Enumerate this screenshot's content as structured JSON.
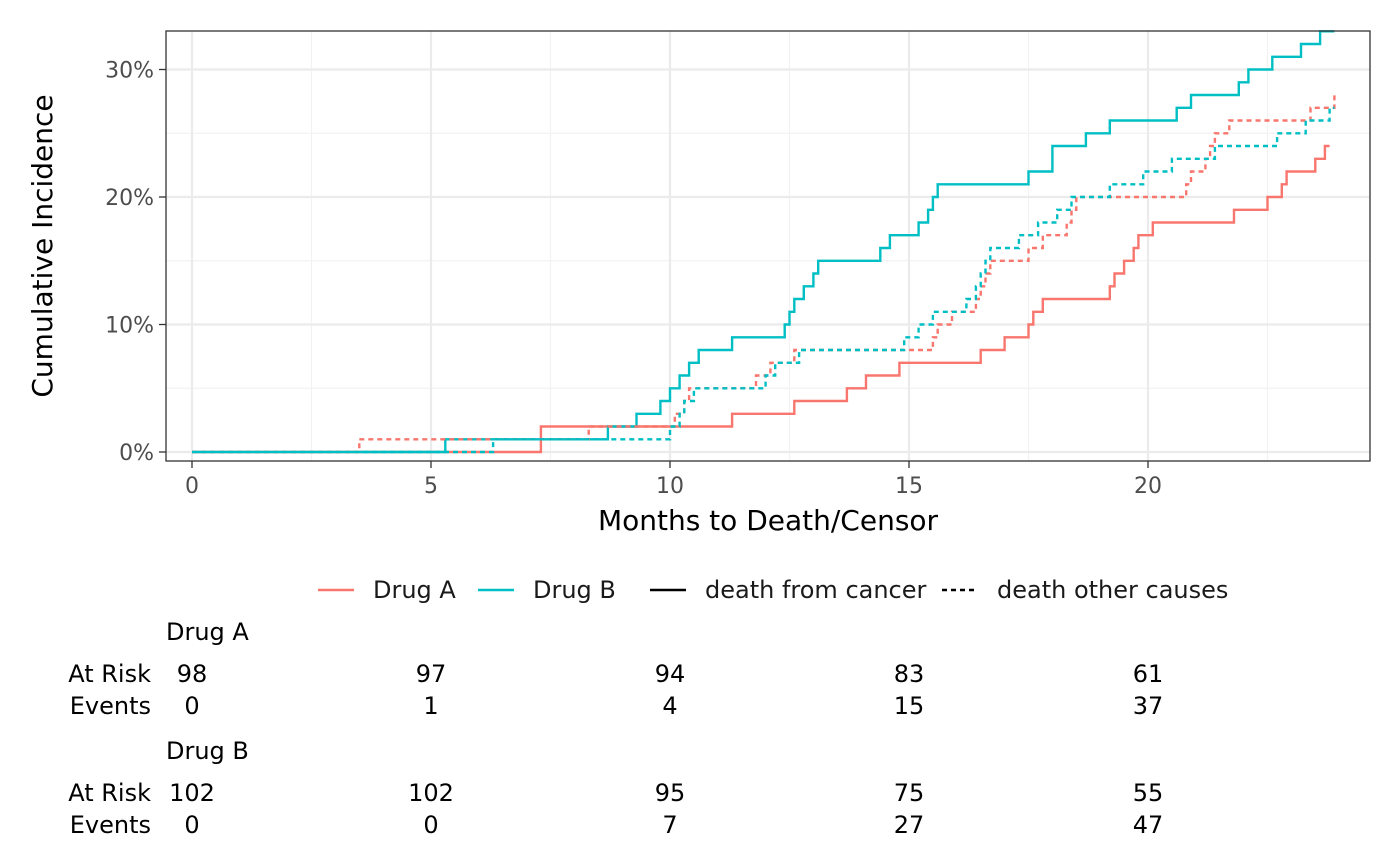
{
  "chart_data": {
    "type": "line",
    "xlabel": "Months to Death/Censor",
    "ylabel": "Cumulative Incidence",
    "xlim": [
      0,
      24
    ],
    "ylim": [
      0,
      0.32
    ],
    "x_ticks": [
      0,
      5,
      10,
      15,
      20
    ],
    "x_tick_labels": [
      "0",
      "5",
      "10",
      "15",
      "20"
    ],
    "y_ticks": [
      0,
      0.1,
      0.2,
      0.3
    ],
    "y_tick_labels": [
      "0%",
      "10%",
      "20%",
      "30%"
    ],
    "grid": true,
    "legend_position": "bottom",
    "legend_items": [
      {
        "label": "Drug A",
        "type": "color",
        "color": "#F8766D"
      },
      {
        "label": "Drug B",
        "type": "color",
        "color": "#00BFC4"
      },
      {
        "label": "death from cancer",
        "type": "linetype",
        "dash": "solid"
      },
      {
        "label": "death other causes",
        "type": "linetype",
        "dash": "dashed"
      }
    ],
    "series": [
      {
        "group": "Drug A",
        "outcome": "death from cancer",
        "color": "#F8766D",
        "dash": "solid",
        "points": [
          [
            0,
            0
          ],
          [
            7.3,
            0
          ],
          [
            7.3,
            0.02
          ],
          [
            11.3,
            0.02
          ],
          [
            11.3,
            0.03
          ],
          [
            12.6,
            0.03
          ],
          [
            12.6,
            0.04
          ],
          [
            13.7,
            0.04
          ],
          [
            13.7,
            0.05
          ],
          [
            14.1,
            0.05
          ],
          [
            14.1,
            0.06
          ],
          [
            14.8,
            0.06
          ],
          [
            14.8,
            0.07
          ],
          [
            16.5,
            0.07
          ],
          [
            16.5,
            0.08
          ],
          [
            17.0,
            0.08
          ],
          [
            17.0,
            0.09
          ],
          [
            17.5,
            0.09
          ],
          [
            17.5,
            0.1
          ],
          [
            17.6,
            0.1
          ],
          [
            17.6,
            0.11
          ],
          [
            17.8,
            0.11
          ],
          [
            17.8,
            0.12
          ],
          [
            19.2,
            0.12
          ],
          [
            19.2,
            0.13
          ],
          [
            19.3,
            0.13
          ],
          [
            19.3,
            0.14
          ],
          [
            19.5,
            0.14
          ],
          [
            19.5,
            0.15
          ],
          [
            19.7,
            0.15
          ],
          [
            19.7,
            0.16
          ],
          [
            19.8,
            0.16
          ],
          [
            19.8,
            0.17
          ],
          [
            20.1,
            0.17
          ],
          [
            20.1,
            0.18
          ],
          [
            21.8,
            0.18
          ],
          [
            21.8,
            0.19
          ],
          [
            22.5,
            0.19
          ],
          [
            22.5,
            0.2
          ],
          [
            22.8,
            0.2
          ],
          [
            22.8,
            0.21
          ],
          [
            22.9,
            0.21
          ],
          [
            22.9,
            0.22
          ],
          [
            23.5,
            0.22
          ],
          [
            23.5,
            0.23
          ],
          [
            23.7,
            0.23
          ],
          [
            23.7,
            0.24
          ],
          [
            23.8,
            0.24
          ]
        ]
      },
      {
        "group": "Drug B",
        "outcome": "death from cancer",
        "color": "#00BFC4",
        "dash": "solid",
        "points": [
          [
            0,
            0
          ],
          [
            5.3,
            0
          ],
          [
            5.3,
            0.01
          ],
          [
            8.7,
            0.01
          ],
          [
            8.7,
            0.02
          ],
          [
            9.3,
            0.02
          ],
          [
            9.3,
            0.03
          ],
          [
            9.8,
            0.03
          ],
          [
            9.8,
            0.04
          ],
          [
            10.0,
            0.04
          ],
          [
            10.0,
            0.05
          ],
          [
            10.2,
            0.05
          ],
          [
            10.2,
            0.06
          ],
          [
            10.4,
            0.06
          ],
          [
            10.4,
            0.07
          ],
          [
            10.6,
            0.07
          ],
          [
            10.6,
            0.08
          ],
          [
            11.3,
            0.08
          ],
          [
            11.3,
            0.09
          ],
          [
            12.4,
            0.09
          ],
          [
            12.4,
            0.1
          ],
          [
            12.5,
            0.1
          ],
          [
            12.5,
            0.11
          ],
          [
            12.6,
            0.11
          ],
          [
            12.6,
            0.12
          ],
          [
            12.8,
            0.12
          ],
          [
            12.8,
            0.13
          ],
          [
            13.0,
            0.13
          ],
          [
            13.0,
            0.14
          ],
          [
            13.1,
            0.14
          ],
          [
            13.1,
            0.15
          ],
          [
            14.4,
            0.15
          ],
          [
            14.4,
            0.16
          ],
          [
            14.6,
            0.16
          ],
          [
            14.6,
            0.17
          ],
          [
            15.2,
            0.17
          ],
          [
            15.2,
            0.18
          ],
          [
            15.4,
            0.18
          ],
          [
            15.4,
            0.19
          ],
          [
            15.5,
            0.19
          ],
          [
            15.5,
            0.2
          ],
          [
            15.6,
            0.2
          ],
          [
            15.6,
            0.21
          ],
          [
            17.5,
            0.21
          ],
          [
            17.5,
            0.22
          ],
          [
            18.0,
            0.22
          ],
          [
            18.0,
            0.23
          ],
          [
            18.0,
            0.23
          ],
          [
            18.0,
            0.24
          ],
          [
            18.7,
            0.24
          ],
          [
            18.7,
            0.25
          ],
          [
            19.2,
            0.25
          ],
          [
            19.2,
            0.26
          ],
          [
            20.6,
            0.26
          ],
          [
            20.6,
            0.27
          ],
          [
            20.9,
            0.27
          ],
          [
            20.9,
            0.28
          ],
          [
            21.9,
            0.28
          ],
          [
            21.9,
            0.29
          ],
          [
            22.1,
            0.29
          ],
          [
            22.1,
            0.3
          ],
          [
            22.6,
            0.3
          ],
          [
            22.6,
            0.31
          ],
          [
            23.2,
            0.31
          ],
          [
            23.2,
            0.32
          ],
          [
            23.6,
            0.32
          ],
          [
            23.6,
            0.33
          ],
          [
            23.9,
            0.33
          ]
        ]
      },
      {
        "group": "Drug A",
        "outcome": "death other causes",
        "color": "#F8766D",
        "dash": "dashed",
        "points": [
          [
            0,
            0
          ],
          [
            3.5,
            0
          ],
          [
            3.5,
            0.01
          ],
          [
            8.3,
            0.01
          ],
          [
            8.3,
            0.02
          ],
          [
            10.1,
            0.02
          ],
          [
            10.1,
            0.03
          ],
          [
            10.3,
            0.03
          ],
          [
            10.3,
            0.04
          ],
          [
            10.4,
            0.04
          ],
          [
            10.4,
            0.05
          ],
          [
            10.6,
            0.05
          ],
          [
            10.6,
            0.05
          ],
          [
            11.8,
            0.05
          ],
          [
            11.8,
            0.06
          ],
          [
            12.1,
            0.06
          ],
          [
            12.1,
            0.07
          ],
          [
            12.4,
            0.07
          ],
          [
            12.4,
            0.07
          ],
          [
            12.6,
            0.07
          ],
          [
            12.6,
            0.08
          ],
          [
            15.5,
            0.08
          ],
          [
            15.5,
            0.09
          ],
          [
            15.6,
            0.09
          ],
          [
            15.6,
            0.1
          ],
          [
            15.9,
            0.1
          ],
          [
            15.9,
            0.11
          ],
          [
            16.4,
            0.11
          ],
          [
            16.4,
            0.12
          ],
          [
            16.5,
            0.12
          ],
          [
            16.5,
            0.13
          ],
          [
            16.6,
            0.13
          ],
          [
            16.6,
            0.14
          ],
          [
            16.7,
            0.14
          ],
          [
            16.7,
            0.15
          ],
          [
            17.5,
            0.15
          ],
          [
            17.5,
            0.16
          ],
          [
            17.8,
            0.16
          ],
          [
            17.8,
            0.17
          ],
          [
            18.3,
            0.17
          ],
          [
            18.3,
            0.18
          ],
          [
            18.4,
            0.18
          ],
          [
            18.4,
            0.19
          ],
          [
            18.5,
            0.19
          ],
          [
            18.5,
            0.2
          ],
          [
            20.8,
            0.2
          ],
          [
            20.8,
            0.21
          ],
          [
            20.9,
            0.21
          ],
          [
            20.9,
            0.22
          ],
          [
            21.2,
            0.22
          ],
          [
            21.2,
            0.23
          ],
          [
            21.3,
            0.23
          ],
          [
            21.3,
            0.24
          ],
          [
            21.4,
            0.24
          ],
          [
            21.4,
            0.25
          ],
          [
            21.7,
            0.25
          ],
          [
            21.7,
            0.26
          ],
          [
            23.4,
            0.26
          ],
          [
            23.4,
            0.27
          ],
          [
            23.9,
            0.27
          ],
          [
            23.9,
            0.28
          ]
        ]
      },
      {
        "group": "Drug B",
        "outcome": "death other causes",
        "color": "#00BFC4",
        "dash": "dashed",
        "points": [
          [
            0,
            0
          ],
          [
            6.3,
            0
          ],
          [
            6.3,
            0.01
          ],
          [
            10.0,
            0.01
          ],
          [
            10.0,
            0.02
          ],
          [
            10.2,
            0.02
          ],
          [
            10.2,
            0.03
          ],
          [
            10.3,
            0.03
          ],
          [
            10.3,
            0.04
          ],
          [
            10.5,
            0.04
          ],
          [
            10.5,
            0.05
          ],
          [
            12.0,
            0.05
          ],
          [
            12.0,
            0.06
          ],
          [
            12.2,
            0.06
          ],
          [
            12.2,
            0.07
          ],
          [
            12.7,
            0.07
          ],
          [
            12.7,
            0.08
          ],
          [
            14.9,
            0.08
          ],
          [
            14.9,
            0.09
          ],
          [
            15.2,
            0.09
          ],
          [
            15.2,
            0.1
          ],
          [
            15.5,
            0.1
          ],
          [
            15.5,
            0.11
          ],
          [
            16.2,
            0.11
          ],
          [
            16.2,
            0.12
          ],
          [
            16.4,
            0.12
          ],
          [
            16.4,
            0.13
          ],
          [
            16.5,
            0.13
          ],
          [
            16.5,
            0.14
          ],
          [
            16.6,
            0.14
          ],
          [
            16.6,
            0.15
          ],
          [
            16.7,
            0.15
          ],
          [
            16.7,
            0.16
          ],
          [
            17.3,
            0.16
          ],
          [
            17.3,
            0.17
          ],
          [
            17.7,
            0.17
          ],
          [
            17.7,
            0.18
          ],
          [
            18.1,
            0.18
          ],
          [
            18.1,
            0.19
          ],
          [
            18.4,
            0.19
          ],
          [
            18.4,
            0.2
          ],
          [
            19.2,
            0.2
          ],
          [
            19.2,
            0.21
          ],
          [
            19.9,
            0.21
          ],
          [
            19.9,
            0.22
          ],
          [
            20.5,
            0.22
          ],
          [
            20.5,
            0.23
          ],
          [
            21.4,
            0.23
          ],
          [
            21.4,
            0.24
          ],
          [
            22.7,
            0.24
          ],
          [
            22.7,
            0.25
          ],
          [
            23.3,
            0.25
          ],
          [
            23.3,
            0.26
          ],
          [
            23.8,
            0.26
          ],
          [
            23.8,
            0.27
          ],
          [
            23.9,
            0.27
          ]
        ]
      }
    ]
  },
  "risk_table": {
    "times": [
      0,
      5,
      10,
      15,
      20
    ],
    "row_labels": {
      "at_risk": "At Risk",
      "events": "Events"
    },
    "groups": [
      {
        "name": "Drug A",
        "at_risk": [
          "98",
          "97",
          "94",
          "83",
          "61"
        ],
        "events": [
          "0",
          "1",
          "4",
          "15",
          "37"
        ]
      },
      {
        "name": "Drug B",
        "at_risk": [
          "102",
          "102",
          "95",
          "75",
          "55"
        ],
        "events": [
          "0",
          "0",
          "7",
          "27",
          "47"
        ]
      }
    ]
  }
}
